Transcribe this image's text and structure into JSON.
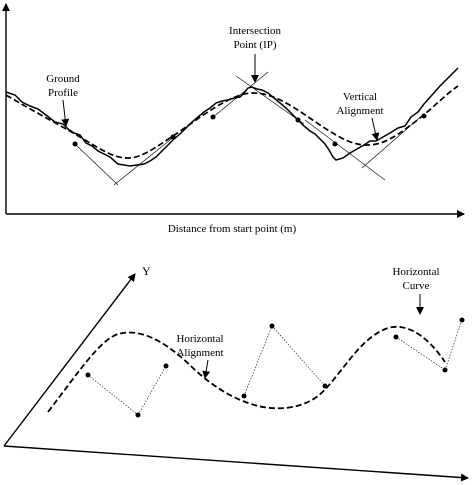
{
  "top_panel": {
    "axis_label": "Distance from start point (m)",
    "labels": {
      "ground_profile": [
        "Ground",
        "Profile"
      ],
      "intersection_point": [
        "Intersection",
        "Point (IP)"
      ],
      "vertical_alignment": [
        "Vertical",
        "Alignment"
      ]
    }
  },
  "bottom_panel": {
    "axis_y_label": "Y",
    "labels": {
      "horizontal_alignment": [
        "Horizontal",
        "Alignment"
      ],
      "horizontal_curve": [
        "Horizontal",
        "Curve"
      ]
    }
  }
}
